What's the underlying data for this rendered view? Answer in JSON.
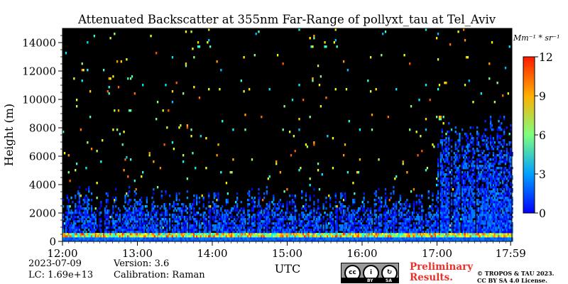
{
  "chart_data": {
    "type": "heatmap",
    "title": "Attenuated Backscatter at 355nm Far-Range of pollyxt_tau at Tel_Aviv",
    "xlabel": "UTC",
    "ylabel": "Height (m)",
    "x_ticks": [
      "12:00",
      "13:00",
      "14:00",
      "15:00",
      "16:00",
      "17:00",
      "17:59"
    ],
    "x_tick_hours": [
      0,
      1,
      2,
      3,
      4,
      5,
      5.983
    ],
    "ylim": [
      0,
      15000
    ],
    "y_ticks": [
      0,
      2000,
      4000,
      6000,
      8000,
      10000,
      12000,
      14000
    ],
    "y_tick_labels": [
      "0",
      "2000",
      "4000",
      "6000",
      "8000",
      "10000",
      "12000",
      "14000"
    ],
    "colorbar": {
      "unit": "Mm⁻¹ * sr⁻¹",
      "range": [
        0,
        12
      ],
      "ticks": [
        0,
        3,
        6,
        9,
        12
      ],
      "tick_labels": [
        "0",
        "3",
        "6",
        "9",
        "12"
      ],
      "colormap": "jet"
    },
    "features": {
      "boundary_layer_top_m": 3500,
      "thick_layer_interval_utc": [
        "17:00",
        "17:59"
      ],
      "thick_layer_top_m": 8500,
      "near_ground_high_values_m": [
        300,
        500
      ],
      "background": "#000000"
    }
  },
  "info": {
    "date": "2023-07-09",
    "lc": "LC: 1.69e+13",
    "version": "Version: 3.6",
    "calibration": "Calibration: Raman"
  },
  "license": {
    "preliminary_line1": "Preliminary",
    "preliminary_line2": "Results.",
    "copyright_line1": "© TROPOS & TAU 2023.",
    "copyright_line2": "CC BY SA 4.0 License.",
    "badge_by": "BY",
    "badge_sa": "SA"
  }
}
